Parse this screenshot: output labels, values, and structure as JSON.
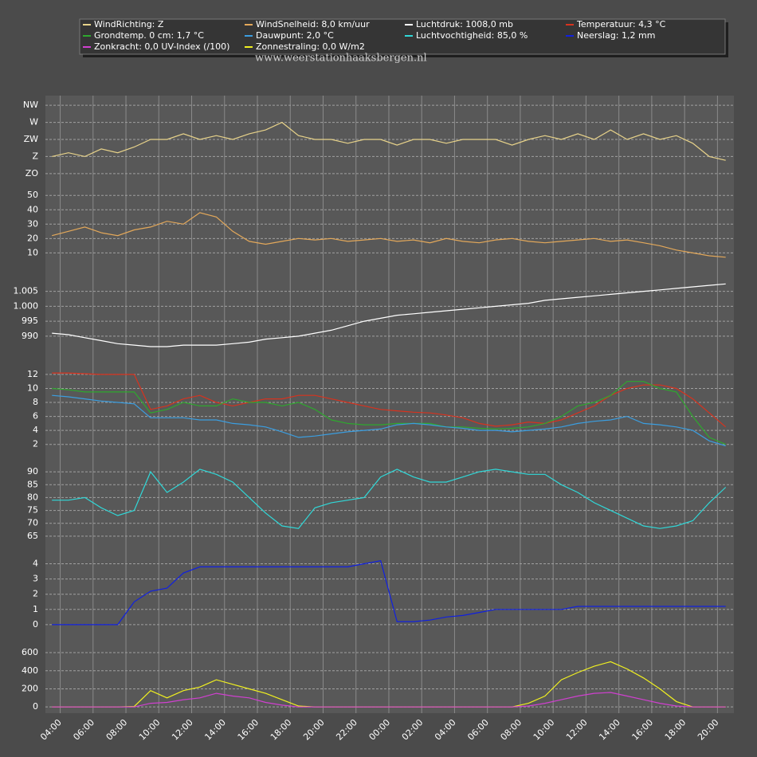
{
  "chart_data": {
    "type": "line",
    "watermark": "www.weerstationhaaksbergen.nl",
    "x": [
      3.5,
      4.5,
      5.5,
      6.5,
      7.5,
      8.5,
      9.5,
      10.5,
      11.5,
      12.5,
      13.5,
      14.5,
      15.5,
      16.5,
      17.5,
      18.5,
      19.5,
      20.5,
      21.5,
      22.5,
      23.5,
      24.5,
      25.5,
      26.5,
      27.5,
      28.5,
      29.5,
      30.5,
      31.5,
      32.5,
      33.5,
      34.5,
      35.5,
      36.5,
      37.5,
      38.5,
      39.5,
      40.5,
      41.5,
      42.5,
      43.5,
      44.5
    ],
    "xlim": [
      3.1,
      45
    ],
    "xticks": [
      {
        "value": 4,
        "label": "04:00"
      },
      {
        "value": 6,
        "label": "06:00"
      },
      {
        "value": 8,
        "label": "08:00"
      },
      {
        "value": 10,
        "label": "10:00"
      },
      {
        "value": 12,
        "label": "12:00"
      },
      {
        "value": 14,
        "label": "14:00"
      },
      {
        "value": 16,
        "label": "16:00"
      },
      {
        "value": 18,
        "label": "18:00"
      },
      {
        "value": 20,
        "label": "20:00"
      },
      {
        "value": 22,
        "label": "22:00"
      },
      {
        "value": 24,
        "label": "00:00"
      },
      {
        "value": 26,
        "label": "02:00"
      },
      {
        "value": 28,
        "label": "04:00"
      },
      {
        "value": 30,
        "label": "06:00"
      },
      {
        "value": 32,
        "label": "08:00"
      },
      {
        "value": 34,
        "label": "10:00"
      },
      {
        "value": 36,
        "label": "12:00"
      },
      {
        "value": 38,
        "label": "14:00"
      },
      {
        "value": 40,
        "label": "16:00"
      },
      {
        "value": 42,
        "label": "18:00"
      },
      {
        "value": 44,
        "label": "20:00"
      }
    ],
    "grid": true,
    "panels": [
      {
        "ylim": [
          120,
          330
        ],
        "yticks": [
          {
            "value": 315,
            "label": "NW"
          },
          {
            "value": 270,
            "label": "W"
          },
          {
            "value": 225,
            "label": "ZW"
          },
          {
            "value": 180,
            "label": "Z"
          },
          {
            "value": 135,
            "label": "ZO"
          }
        ],
        "series": [
          {
            "name": "WindRichting: Z",
            "color": "#e8d38a",
            "values": [
              180,
              190,
              180,
              200,
              190,
              205,
              225,
              225,
              240,
              225,
              235,
              225,
              240,
              250,
              270,
              235,
              225,
              225,
              215,
              225,
              225,
              210,
              225,
              225,
              215,
              225,
              225,
              225,
              210,
              225,
              235,
              225,
              240,
              225,
              250,
              225,
              240,
              225,
              235,
              215,
              180,
              170
            ]
          }
        ]
      },
      {
        "ylim": [
          3,
          54
        ],
        "yticks": [
          10,
          20,
          30,
          40,
          50
        ],
        "series": [
          {
            "name": "WindSnelheid: 8,0 km/uur",
            "color": "#e3a85a",
            "values": [
              22,
              25,
              28,
              24,
              22,
              26,
              28,
              32,
              30,
              38,
              35,
              25,
              18,
              16,
              18,
              20,
              19,
              20,
              18,
              19,
              20,
              18,
              19,
              17,
              20,
              18,
              17,
              19,
              20,
              18,
              17,
              18,
              19,
              20,
              18,
              19,
              17,
              15,
              12,
              10,
              8,
              7
            ]
          }
        ]
      },
      {
        "ylim": [
          982.5,
          1010.5
        ],
        "yticks": [
          990,
          995,
          {
            "value": 1000,
            "label": "1.000"
          },
          {
            "value": 1005,
            "label": "1.005"
          }
        ],
        "series": [
          {
            "name": "Luchtdruk: 1008,0 mb",
            "color": "#ffffff",
            "values": [
              991,
              990.5,
              989.5,
              988.5,
              987.5,
              987,
              986.5,
              986.5,
              987,
              987,
              987,
              987.5,
              988,
              989,
              989.5,
              990,
              991,
              992,
              993.5,
              995,
              996,
              997,
              997.5,
              998,
              998.5,
              999,
              999.5,
              1000,
              1000.5,
              1001,
              1002,
              1002.5,
              1003,
              1003.5,
              1004,
              1004.5,
              1005,
              1005.5,
              1006,
              1006.5,
              1007,
              1007.5
            ]
          }
        ]
      },
      {
        "ylim": [
          0.6,
          12.9
        ],
        "yticks": [
          2,
          4,
          6,
          8,
          10,
          12
        ],
        "series": [
          {
            "name": "Temperatuur: 4,3 °C",
            "color": "#d8321e",
            "values": [
              12.2,
              12.2,
              12.1,
              12,
              12,
              12,
              7,
              7.5,
              8.5,
              9,
              8,
              7.5,
              8,
              8.5,
              8.5,
              9,
              9,
              8.5,
              8,
              7.5,
              7,
              6.8,
              6.6,
              6.5,
              6.2,
              5.8,
              5,
              4.6,
              4.8,
              5.2,
              5,
              5.5,
              6.5,
              7.5,
              9,
              10,
              10.5,
              10.5,
              10,
              8.5,
              6.5,
              4.5
            ]
          },
          {
            "name": "Grondtemp. 0 cm: 1,7 °C",
            "color": "#2ea82e",
            "values": [
              10,
              9.8,
              9.5,
              9.5,
              9.5,
              9.5,
              6.5,
              7,
              8,
              7.5,
              7.5,
              8.5,
              8,
              8,
              7.5,
              8,
              7,
              5.5,
              5,
              4.8,
              4.8,
              5,
              5,
              5,
              4.5,
              4.5,
              4.3,
              4.2,
              4.3,
              4.5,
              5,
              6,
              7.5,
              8,
              9,
              11,
              11,
              10,
              9.5,
              6,
              3,
              2
            ]
          },
          {
            "name": "Dauwpunt: 2,0 °C",
            "color": "#3b9ee0",
            "values": [
              9,
              8.8,
              8.5,
              8.2,
              8,
              7.8,
              5.8,
              5.8,
              5.8,
              5.5,
              5.5,
              5,
              4.8,
              4.5,
              3.8,
              3,
              3.2,
              3.5,
              3.8,
              4,
              4.2,
              4.8,
              5,
              4.8,
              4.5,
              4.3,
              4,
              4,
              3.8,
              4,
              4.2,
              4.5,
              5,
              5.3,
              5.5,
              6,
              5,
              4.8,
              4.5,
              4,
              2.5,
              1.8
            ]
          }
        ]
      },
      {
        "ylim": [
          62.8,
          92.2
        ],
        "yticks": [
          65,
          70,
          75,
          80,
          85,
          90
        ],
        "series": [
          {
            "name": "Luchtvochtigheid: 85,0 %",
            "color": "#30d8d8",
            "values": [
              79,
              79,
              80,
              76,
              73,
              75,
              90,
              82,
              86,
              91,
              89,
              86,
              80,
              74,
              69,
              68,
              76,
              78,
              79,
              80,
              88,
              91,
              88,
              86,
              86,
              88,
              90,
              91,
              90,
              89,
              89,
              85,
              82,
              78,
              75,
              72,
              69,
              68,
              69,
              71,
              78,
              84
            ]
          }
        ]
      },
      {
        "ylim": [
          -0.32,
          4.5
        ],
        "yticks": [
          0,
          1,
          2,
          3,
          4
        ],
        "series": [
          {
            "name": "Neerslag: 1,2 mm",
            "color": "#1020e0",
            "values": [
              0,
              0,
              0,
              0,
              0,
              1.5,
              2.2,
              2.4,
              3.4,
              3.8,
              3.8,
              3.8,
              3.8,
              3.8,
              3.8,
              3.8,
              3.8,
              3.8,
              3.8,
              4.0,
              4.2,
              0.2,
              0.2,
              0.3,
              0.5,
              0.6,
              0.8,
              1,
              1,
              1,
              1,
              1,
              1.2,
              1.2,
              1.2,
              1.2,
              1.2,
              1.2,
              1.2,
              1.2,
              1.2,
              1.2
            ]
          }
        ]
      },
      {
        "ylim": [
          -25,
          715
        ],
        "yticks": [
          0,
          200,
          400,
          600
        ],
        "series": [
          {
            "name": "Zonnestraling: 0,0 W/m2",
            "color": "#f0f020",
            "values": [
              0,
              0,
              0,
              0,
              0,
              5,
              180,
              100,
              180,
              220,
              300,
              250,
              200,
              150,
              80,
              10,
              0,
              0,
              0,
              0,
              0,
              0,
              0,
              0,
              0,
              0,
              0,
              0,
              0,
              40,
              120,
              300,
              380,
              450,
              500,
              420,
              320,
              200,
              60,
              0,
              0,
              0
            ]
          },
          {
            "name": "Zonkracht: 0,0 UV-Index (/100)",
            "color": "#d040d0",
            "values": [
              0,
              0,
              0,
              0,
              0,
              0,
              40,
              50,
              80,
              100,
              150,
              120,
              100,
              50,
              20,
              0,
              0,
              0,
              0,
              0,
              0,
              0,
              0,
              0,
              0,
              0,
              0,
              0,
              0,
              10,
              40,
              80,
              120,
              150,
              160,
              120,
              80,
              40,
              10,
              0,
              0,
              0
            ]
          }
        ]
      }
    ]
  }
}
